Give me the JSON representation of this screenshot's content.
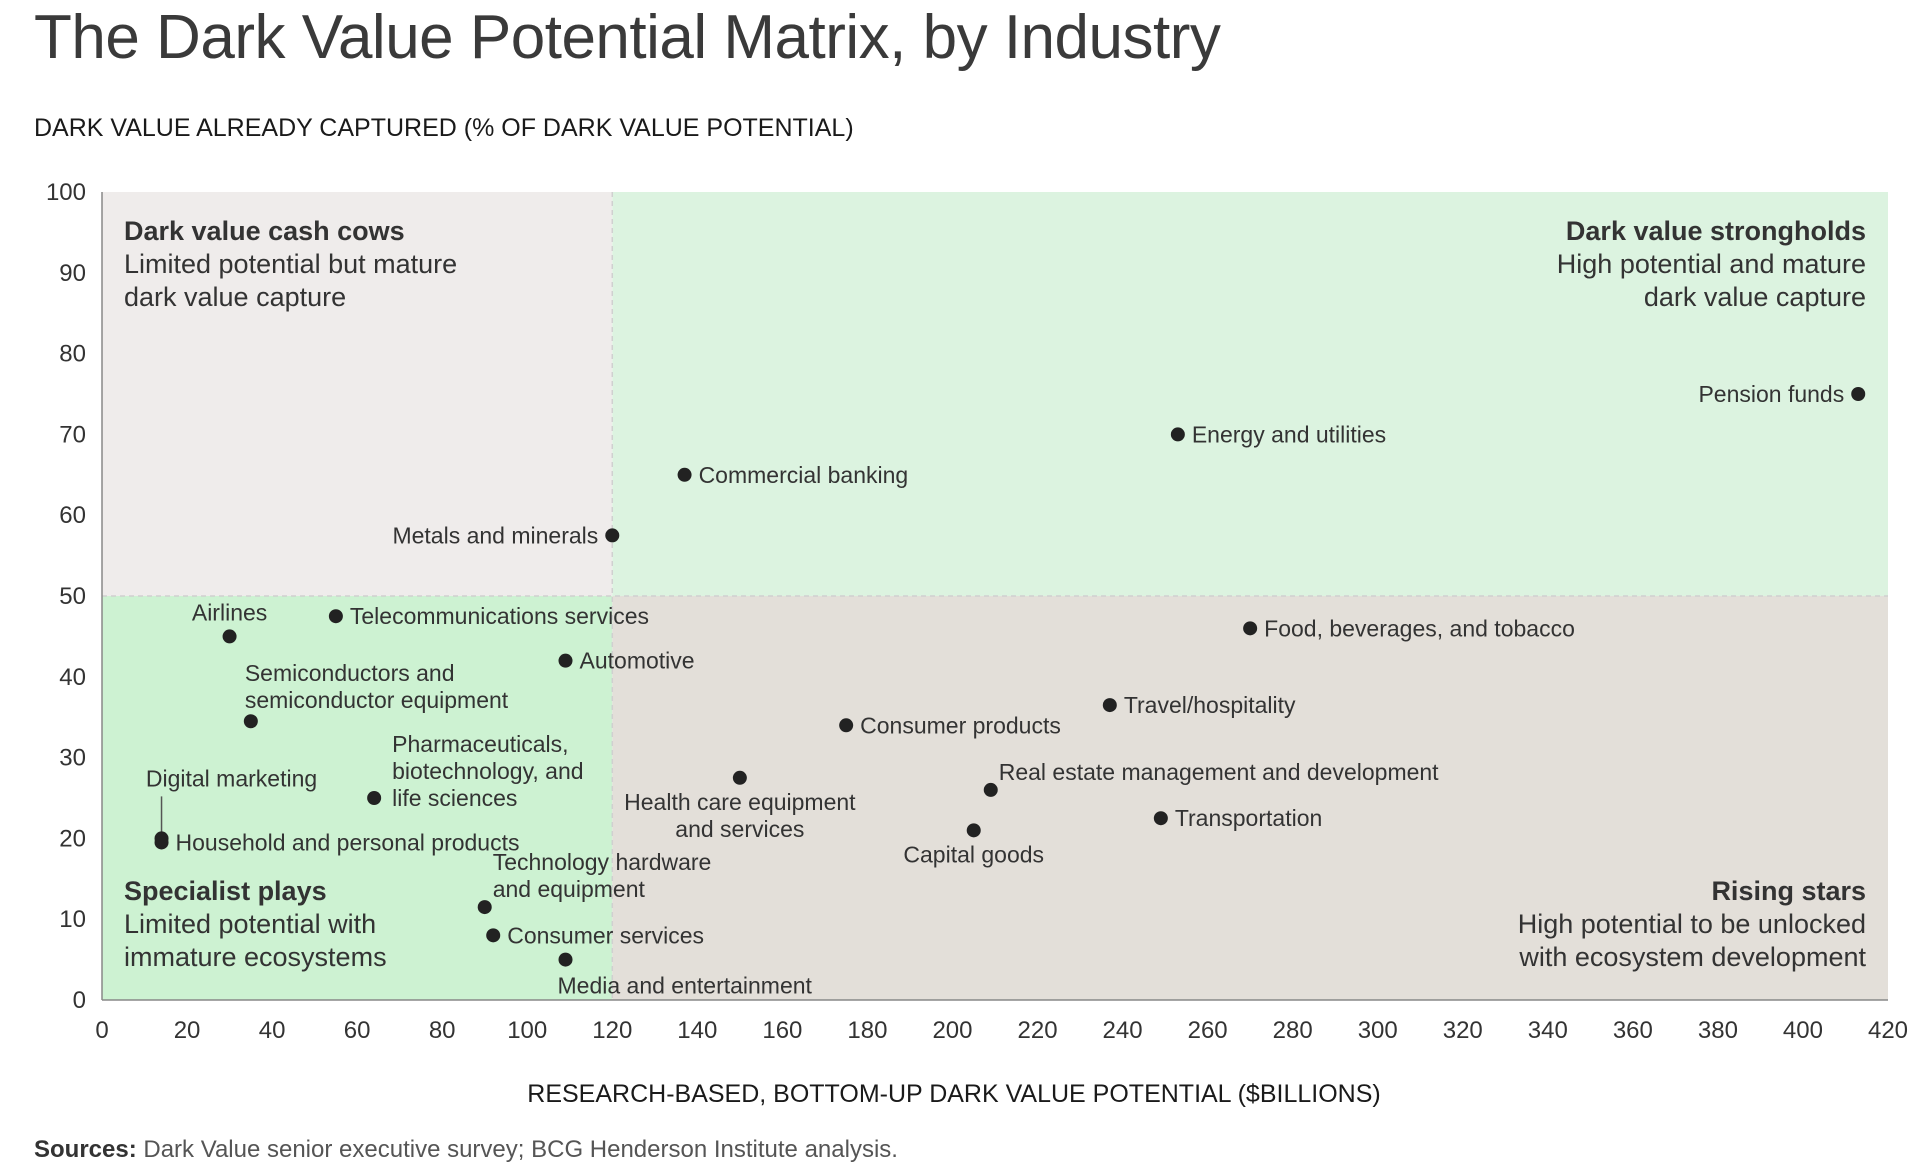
{
  "chart_data": {
    "type": "scatter",
    "title": "The Dark Value Potential Matrix, by Industry",
    "ylabel": "DARK VALUE ALREADY CAPTURED (% OF DARK VALUE POTENTIAL)",
    "xlabel": "RESEARCH-BASED, BOTTOM-UP DARK VALUE POTENTIAL ($BILLIONS)",
    "xlim": [
      0,
      420
    ],
    "ylim": [
      0,
      100
    ],
    "x_ticks": [
      "0",
      "20",
      "40",
      "60",
      "80",
      "100",
      "120",
      "140",
      "160",
      "180",
      "200",
      "220",
      "240",
      "260",
      "280",
      "300",
      "320",
      "340",
      "360",
      "380",
      "400",
      "420"
    ],
    "y_ticks": [
      "0",
      "10",
      "20",
      "30",
      "40",
      "50",
      "60",
      "70",
      "80",
      "90",
      "100"
    ],
    "threshold_x": 120,
    "threshold_y": 50,
    "colors": {
      "cash_cows": "#efeceb",
      "strongholds": "#dcf3e0",
      "specialist": "#cdf2d2",
      "rising": "#e3dfd9",
      "point": "#222222",
      "divider": "#d0d0d0"
    },
    "quadrants": [
      {
        "id": "cash-cows",
        "title": "Dark value cash cows",
        "lines": [
          "Limited potential but mature",
          "dark value capture"
        ]
      },
      {
        "id": "strongholds",
        "title": "Dark value strongholds",
        "lines": [
          "High potential and mature",
          "dark value capture"
        ]
      },
      {
        "id": "specialist",
        "title": "Specialist plays",
        "lines": [
          "Limited potential with",
          "immature ecosystems"
        ]
      },
      {
        "id": "rising",
        "title": "Rising stars",
        "lines": [
          "High potential to be unlocked",
          "with ecosystem development"
        ]
      }
    ],
    "points": [
      {
        "label": [
          "Pension funds"
        ],
        "x": 413,
        "y": 75,
        "pos": "left"
      },
      {
        "label": [
          "Energy and utilities"
        ],
        "x": 253,
        "y": 70,
        "pos": "right"
      },
      {
        "label": [
          "Commercial banking"
        ],
        "x": 137,
        "y": 65,
        "pos": "right"
      },
      {
        "label": [
          "Metals and minerals"
        ],
        "x": 120,
        "y": 57.5,
        "pos": "left"
      },
      {
        "label": [
          "Airlines"
        ],
        "x": 30,
        "y": 45,
        "pos": "above-left"
      },
      {
        "label": [
          "Telecommunications services"
        ],
        "x": 55,
        "y": 47.5,
        "pos": "right"
      },
      {
        "label": [
          "Automotive"
        ],
        "x": 109,
        "y": 42,
        "pos": "right"
      },
      {
        "label": [
          "Food, beverages, and tobacco"
        ],
        "x": 270,
        "y": 46,
        "pos": "right"
      },
      {
        "label": [
          "Semiconductors and",
          "semiconductor equipment"
        ],
        "x": 35,
        "y": 34.5,
        "pos": "above-right"
      },
      {
        "label": [
          "Travel/hospitality"
        ],
        "x": 237,
        "y": 36.5,
        "pos": "right"
      },
      {
        "label": [
          "Consumer products"
        ],
        "x": 175,
        "y": 34,
        "pos": "right"
      },
      {
        "label": [
          "Pharmaceuticals,",
          "biotechnology, and",
          "life sciences"
        ],
        "x": 64,
        "y": 25,
        "pos": "right-multi"
      },
      {
        "label": [
          "Health care equipment",
          "and services"
        ],
        "x": 150,
        "y": 27.5,
        "pos": "below"
      },
      {
        "label": [
          "Real estate management and development"
        ],
        "x": 209,
        "y": 26,
        "pos": "right-up"
      },
      {
        "label": [
          "Capital goods"
        ],
        "x": 205,
        "y": 21,
        "pos": "below"
      },
      {
        "label": [
          "Transportation"
        ],
        "x": 249,
        "y": 22.5,
        "pos": "right"
      },
      {
        "label": [
          "Digital marketing"
        ],
        "x": 14,
        "y": 20,
        "pos": "callout"
      },
      {
        "label": [
          "Household and personal products"
        ],
        "x": 14,
        "y": 19.5,
        "pos": "right"
      },
      {
        "label": [
          "Technology hardware",
          "and equipment"
        ],
        "x": 90,
        "y": 11.5,
        "pos": "right-up"
      },
      {
        "label": [
          "Consumer services"
        ],
        "x": 92,
        "y": 8,
        "pos": "right"
      },
      {
        "label": [
          "Media and entertainment"
        ],
        "x": 109,
        "y": 5,
        "pos": "below-right"
      }
    ]
  },
  "sources": {
    "label": "Sources:",
    "text": "Dark Value senior executive survey; BCG Henderson Institute analysis."
  }
}
